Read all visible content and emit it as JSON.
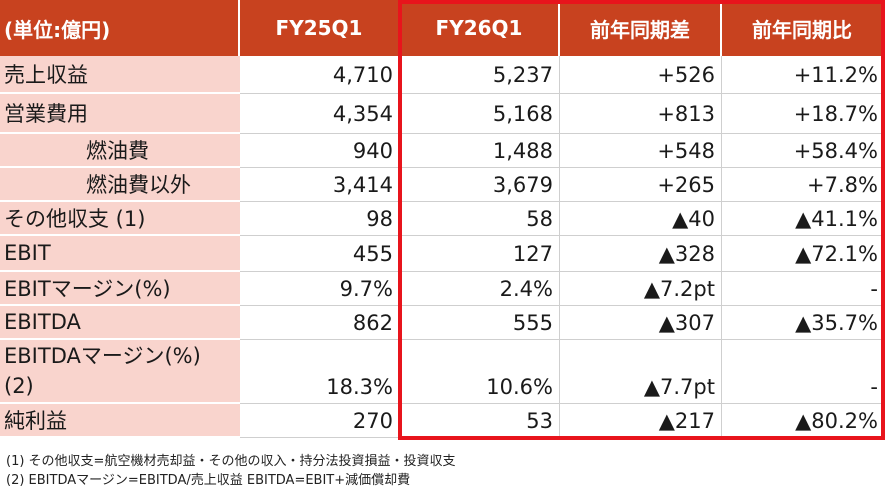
{
  "header": [
    "(単位:億円)",
    "FY25Q1",
    "FY26Q1",
    "前年同期差",
    "前年同期比"
  ],
  "rows": [
    {
      "label": "売上収益",
      "values": [
        "4,710",
        "5,237",
        "+526",
        "+11.2%"
      ]
    },
    {
      "label": "営業費用",
      "values": [
        "4,354",
        "5,168",
        "+813",
        "+18.7%"
      ]
    },
    {
      "label": "燃油費",
      "values": [
        "940",
        "1,488",
        "+548",
        "+58.4%"
      ]
    },
    {
      "label": "燃油費以外",
      "values": [
        "3,414",
        "3,679",
        "+265",
        "+7.8%"
      ]
    },
    {
      "label": "その他収支 (1)",
      "values": [
        "98",
        "58",
        "▲40",
        "▲41.1%"
      ]
    },
    {
      "label": "EBIT",
      "values": [
        "455",
        "127",
        "▲328",
        "▲72.1%"
      ]
    },
    {
      "label": "EBITマージン(%)",
      "values": [
        "9.7%",
        "2.4%",
        "▲7.2pt",
        "-"
      ]
    },
    {
      "label": "EBITDA",
      "values": [
        "862",
        "555",
        "▲307",
        "▲35.7%"
      ]
    },
    {
      "label": "EBITDAマージン(%)",
      "label2": "(2)",
      "values": [
        "18.3%",
        "10.6%",
        "▲7.7pt",
        "-"
      ]
    },
    {
      "label": "純利益",
      "values": [
        "270",
        "53",
        "▲217",
        "▲80.2%"
      ]
    }
  ],
  "notes": [
    "(1) その他収支=航空機材売却益・その他の収入・持分法投資損益・投資収支",
    "(2) EBITDAマージン=EBITDA/売上収益 EBITDA=EBIT+減価償却費"
  ],
  "colors": {
    "header_bg": "#c8421f",
    "label_bg": "#f9d4cd",
    "highlight_border": "#e8141c"
  }
}
